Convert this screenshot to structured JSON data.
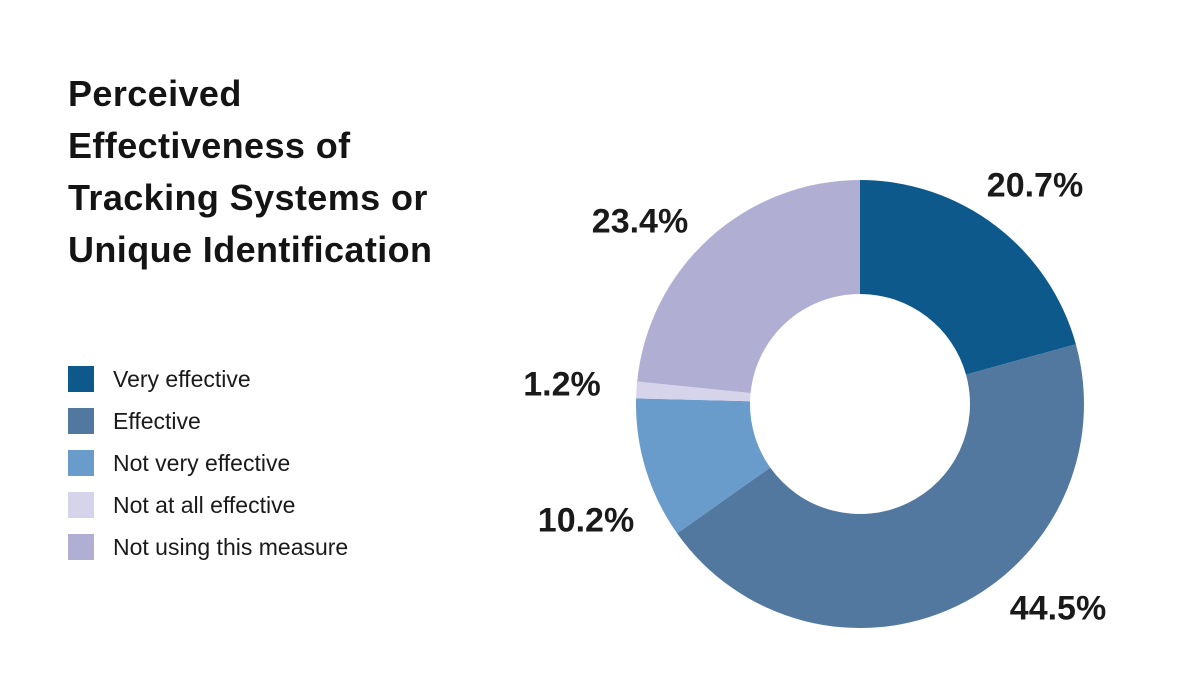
{
  "page": {
    "background": "#ffffff",
    "title_lines": [
      "Perceived",
      "Effectiveness of",
      "Tracking Systems or",
      "Unique Identification"
    ]
  },
  "chart_data": {
    "type": "pie",
    "subtype": "donut",
    "title": "Perceived Effectiveness of Tracking Systems or Unique Identification",
    "categories": [
      "Very effective",
      "Effective",
      "Not very effective",
      "Not at all effective",
      "Not using this measure"
    ],
    "values": [
      20.7,
      44.5,
      10.2,
      1.2,
      23.4
    ],
    "unit": "%",
    "colors": [
      "#0e598c",
      "#52789f",
      "#699ccb",
      "#d6d4ea",
      "#b0aed3"
    ],
    "start_angle_deg": 0,
    "direction": "clockwise",
    "inner_radius_ratio": 0.49,
    "legend_position": "left",
    "label_color": "#1a1a1a",
    "title_color": "#141414"
  }
}
